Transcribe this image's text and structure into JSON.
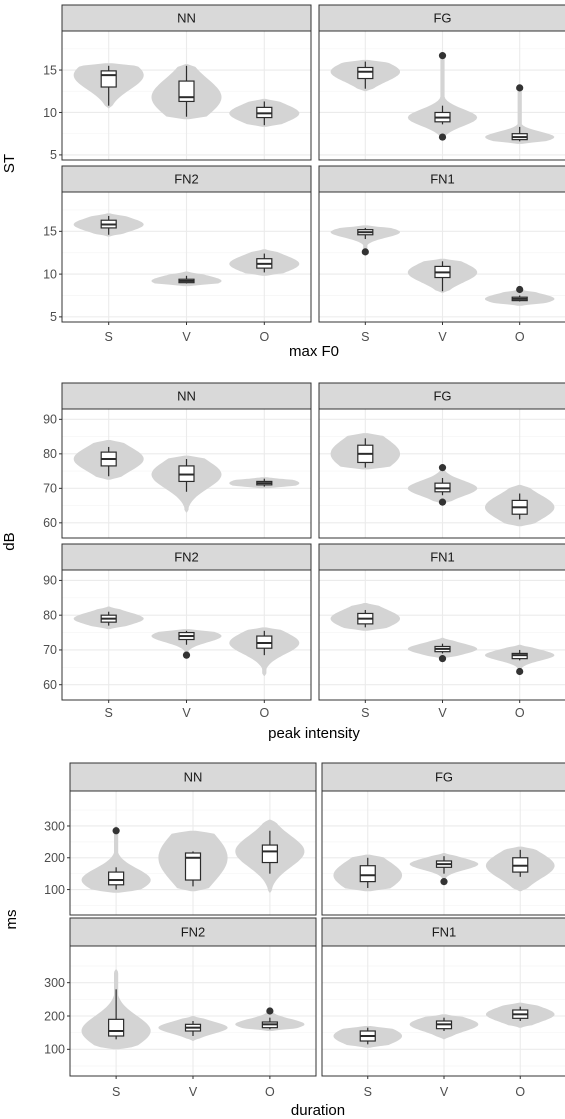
{
  "chart_data": [
    {
      "type": "violin+box",
      "xlabel": "max F0",
      "ylabel": "ST",
      "categories": [
        "S",
        "V",
        "O"
      ],
      "yticks": [
        5,
        10,
        15
      ],
      "ylim": [
        4.4,
        19.6
      ],
      "grid": true,
      "panels": [
        {
          "label": "NN",
          "series": [
            {
              "category": "S",
              "min": 10.8,
              "q1": 13.0,
              "median": 14.4,
              "q3": 14.9,
              "max": 15.5,
              "vmin": 10.5,
              "vmax": 15.8,
              "outliers": []
            },
            {
              "category": "V",
              "min": 9.5,
              "q1": 11.3,
              "median": 11.8,
              "q3": 13.7,
              "max": 15.5,
              "vmin": 9.2,
              "vmax": 15.7,
              "outliers": []
            },
            {
              "category": "O",
              "min": 8.5,
              "q1": 9.4,
              "median": 9.9,
              "q3": 10.6,
              "max": 11.3,
              "vmin": 8.3,
              "vmax": 11.6,
              "outliers": []
            }
          ]
        },
        {
          "label": "FG",
          "series": [
            {
              "category": "S",
              "min": 12.8,
              "q1": 14.0,
              "median": 14.8,
              "q3": 15.3,
              "max": 16.0,
              "vmin": 12.5,
              "vmax": 16.2,
              "outliers": []
            },
            {
              "category": "V",
              "min": 8.6,
              "q1": 8.9,
              "median": 9.4,
              "q3": 10.0,
              "max": 10.8,
              "vmin": 7.0,
              "vmax": 16.7,
              "outliers": [
                7.1,
                16.7
              ]
            },
            {
              "category": "O",
              "min": 6.6,
              "q1": 6.8,
              "median": 7.1,
              "q3": 7.5,
              "max": 8.3,
              "vmin": 6.3,
              "vmax": 12.9,
              "outliers": [
                12.9
              ]
            }
          ]
        },
        {
          "label": "FN2",
          "series": [
            {
              "category": "S",
              "min": 14.6,
              "q1": 15.4,
              "median": 15.8,
              "q3": 16.3,
              "max": 16.8,
              "vmin": 14.4,
              "vmax": 17.1,
              "outliers": []
            },
            {
              "category": "V",
              "min": 8.9,
              "q1": 9.0,
              "median": 9.2,
              "q3": 9.4,
              "max": 9.8,
              "vmin": 8.6,
              "vmax": 10.3,
              "outliers": []
            },
            {
              "category": "O",
              "min": 10.2,
              "q1": 10.7,
              "median": 11.2,
              "q3": 11.8,
              "max": 12.4,
              "vmin": 9.8,
              "vmax": 12.9,
              "outliers": []
            }
          ]
        },
        {
          "label": "FN1",
          "series": [
            {
              "category": "S",
              "min": 14.1,
              "q1": 14.6,
              "median": 14.9,
              "q3": 15.2,
              "max": 15.4,
              "vmin": 12.6,
              "vmax": 15.7,
              "outliers": [
                12.6
              ]
            },
            {
              "category": "V",
              "min": 8.0,
              "q1": 9.6,
              "median": 10.2,
              "q3": 10.9,
              "max": 11.5,
              "vmin": 7.8,
              "vmax": 11.8,
              "outliers": []
            },
            {
              "category": "O",
              "min": 6.8,
              "q1": 6.9,
              "median": 7.1,
              "q3": 7.3,
              "max": 7.5,
              "vmin": 6.3,
              "vmax": 8.2,
              "outliers": [
                8.2
              ]
            }
          ]
        }
      ]
    },
    {
      "type": "violin+box",
      "xlabel": "peak intensity",
      "ylabel": "dB",
      "categories": [
        "S",
        "V",
        "O"
      ],
      "yticks": [
        60,
        70,
        80,
        90
      ],
      "ylim": [
        55.6,
        93.0
      ],
      "grid": true,
      "panels": [
        {
          "label": "NN",
          "series": [
            {
              "category": "S",
              "min": 73.5,
              "q1": 76.5,
              "median": 78.5,
              "q3": 80.5,
              "max": 82.0,
              "vmin": 72.5,
              "vmax": 84.0,
              "outliers": []
            },
            {
              "category": "V",
              "min": 69.0,
              "q1": 72.0,
              "median": 74.0,
              "q3": 76.5,
              "max": 78.5,
              "vmin": 63.0,
              "vmax": 79.5,
              "outliers": []
            },
            {
              "category": "O",
              "min": 70.5,
              "q1": 71.0,
              "median": 71.5,
              "q3": 72.0,
              "max": 72.8,
              "vmin": 70.0,
              "vmax": 73.2,
              "outliers": []
            }
          ]
        },
        {
          "label": "FG",
          "series": [
            {
              "category": "S",
              "min": 76.0,
              "q1": 77.5,
              "median": 80.0,
              "q3": 82.5,
              "max": 84.5,
              "vmin": 75.5,
              "vmax": 86.0,
              "outliers": []
            },
            {
              "category": "V",
              "min": 68.0,
              "q1": 69.0,
              "median": 70.0,
              "q3": 71.5,
              "max": 73.0,
              "vmin": 65.5,
              "vmax": 76.2,
              "outliers": [
                66.0,
                76.0
              ]
            },
            {
              "category": "O",
              "min": 61.0,
              "q1": 62.5,
              "median": 64.5,
              "q3": 66.5,
              "max": 68.5,
              "vmin": 59.0,
              "vmax": 71.0,
              "outliers": []
            }
          ]
        },
        {
          "label": "FN2",
          "series": [
            {
              "category": "S",
              "min": 77.0,
              "q1": 78.0,
              "median": 79.0,
              "q3": 80.0,
              "max": 81.0,
              "vmin": 76.0,
              "vmax": 82.5,
              "outliers": []
            },
            {
              "category": "V",
              "min": 71.5,
              "q1": 73.0,
              "median": 74.0,
              "q3": 75.0,
              "max": 75.5,
              "vmin": 68.0,
              "vmax": 76.0,
              "outliers": [
                68.5
              ]
            },
            {
              "category": "O",
              "min": 68.5,
              "q1": 70.5,
              "median": 72.0,
              "q3": 74.0,
              "max": 75.5,
              "vmin": 62.5,
              "vmax": 76.5,
              "outliers": []
            }
          ]
        },
        {
          "label": "FN1",
          "series": [
            {
              "category": "S",
              "min": 76.5,
              "q1": 77.5,
              "median": 79.0,
              "q3": 80.5,
              "max": 81.5,
              "vmin": 75.5,
              "vmax": 83.5,
              "outliers": []
            },
            {
              "category": "V",
              "min": 69.0,
              "q1": 69.5,
              "median": 70.3,
              "q3": 71.0,
              "max": 71.8,
              "vmin": 67.5,
              "vmax": 73.5,
              "outliers": [
                67.5
              ]
            },
            {
              "category": "O",
              "min": 67.0,
              "q1": 67.5,
              "median": 68.5,
              "q3": 69.0,
              "max": 70.0,
              "vmin": 63.5,
              "vmax": 71.5,
              "outliers": [
                63.8
              ]
            }
          ]
        }
      ]
    },
    {
      "type": "violin+box",
      "xlabel": "duration",
      "ylabel": "ms",
      "categories": [
        "S",
        "V",
        "O"
      ],
      "yticks": [
        100,
        200,
        300
      ],
      "ylim": [
        20,
        410
      ],
      "grid": true,
      "panels": [
        {
          "label": "NN",
          "series": [
            {
              "category": "S",
              "min": 100,
              "q1": 115,
              "median": 130,
              "q3": 155,
              "max": 170,
              "vmin": 90,
              "vmax": 300,
              "outliers": [
                285
              ]
            },
            {
              "category": "V",
              "min": 110,
              "q1": 130,
              "median": 200,
              "q3": 215,
              "max": 220,
              "vmin": 95,
              "vmax": 285,
              "outliers": []
            },
            {
              "category": "O",
              "min": 150,
              "q1": 185,
              "median": 220,
              "q3": 240,
              "max": 285,
              "vmin": 90,
              "vmax": 320,
              "outliers": []
            }
          ]
        },
        {
          "label": "FG",
          "series": [
            {
              "category": "S",
              "min": 105,
              "q1": 125,
              "median": 145,
              "q3": 175,
              "max": 200,
              "vmin": 95,
              "vmax": 210,
              "outliers": []
            },
            {
              "category": "V",
              "min": 150,
              "q1": 170,
              "median": 180,
              "q3": 190,
              "max": 205,
              "vmin": 120,
              "vmax": 215,
              "outliers": [
                125
              ]
            },
            {
              "category": "O",
              "min": 140,
              "q1": 155,
              "median": 175,
              "q3": 200,
              "max": 225,
              "vmin": 95,
              "vmax": 235,
              "outliers": []
            }
          ]
        },
        {
          "label": "FN2",
          "series": [
            {
              "category": "S",
              "min": 130,
              "q1": 140,
              "median": 155,
              "q3": 190,
              "max": 280,
              "vmin": 100,
              "vmax": 340,
              "outliers": []
            },
            {
              "category": "V",
              "min": 140,
              "q1": 155,
              "median": 165,
              "q3": 175,
              "max": 185,
              "vmin": 125,
              "vmax": 200,
              "outliers": []
            },
            {
              "category": "O",
              "min": 160,
              "q1": 165,
              "median": 175,
              "q3": 182,
              "max": 195,
              "vmin": 155,
              "vmax": 225,
              "outliers": [
                215
              ]
            }
          ]
        },
        {
          "label": "FN1",
          "series": [
            {
              "category": "S",
              "min": 115,
              "q1": 125,
              "median": 140,
              "q3": 155,
              "max": 165,
              "vmin": 105,
              "vmax": 170,
              "outliers": []
            },
            {
              "category": "V",
              "min": 155,
              "q1": 162,
              "median": 175,
              "q3": 185,
              "max": 195,
              "vmin": 130,
              "vmax": 205,
              "outliers": []
            },
            {
              "category": "O",
              "min": 185,
              "q1": 193,
              "median": 205,
              "q3": 218,
              "max": 228,
              "vmin": 165,
              "vmax": 240,
              "outliers": []
            }
          ]
        }
      ]
    }
  ],
  "colors": {
    "violin": "#d4d4d4",
    "box_fill": "#ffffff",
    "box_line": "#2b2b2b",
    "outlier": "#333333",
    "strip_bg": "#d9d9d9",
    "panel_border": "#333333",
    "grid_major": "#ebebeb",
    "grid_minor": "#f5f5f5"
  }
}
